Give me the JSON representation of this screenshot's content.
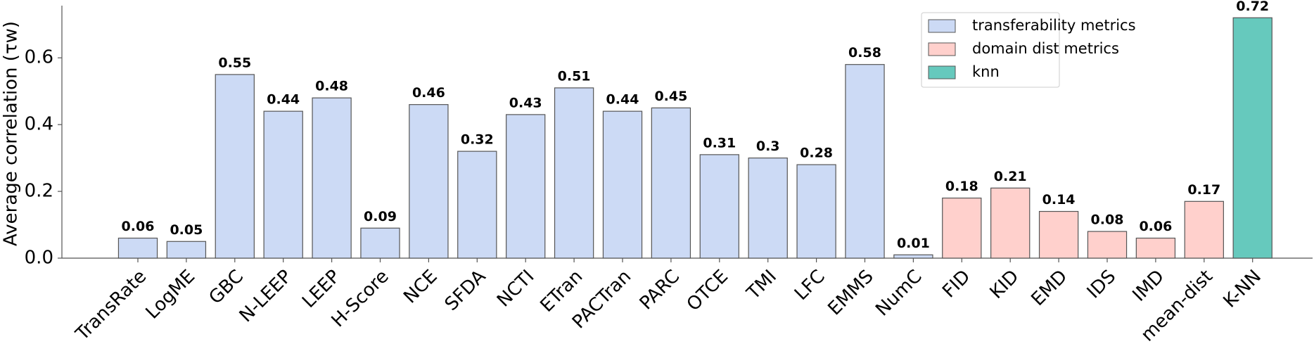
{
  "chart_data": {
    "type": "bar",
    "y_label": "Average correlation (τw)",
    "categories": [
      "TransRate",
      "LogME",
      "GBC",
      "N-LEEP",
      "LEEP",
      "H-Score",
      "NCE",
      "SFDA",
      "NCTI",
      "ETran",
      "PACTran",
      "PARC",
      "OTCE",
      "TMI",
      "LFC",
      "EMMS",
      "NumC",
      "FID",
      "KID",
      "EMD",
      "IDS",
      "IMD",
      "mean-dist",
      "K-NN"
    ],
    "series": [
      {
        "name": "transferability metrics",
        "color": "#ccdaf5",
        "values": [
          0.06,
          0.05,
          0.55,
          0.44,
          0.48,
          0.09,
          0.46,
          0.32,
          0.43,
          0.51,
          0.44,
          0.45,
          0.31,
          0.3,
          0.28,
          0.58,
          0.01,
          null,
          null,
          null,
          null,
          null,
          null,
          null
        ]
      },
      {
        "name": "domain dist metrics",
        "color": "#ffd0cc",
        "values": [
          null,
          null,
          null,
          null,
          null,
          null,
          null,
          null,
          null,
          null,
          null,
          null,
          null,
          null,
          null,
          null,
          null,
          0.18,
          0.21,
          0.14,
          0.08,
          0.06,
          0.17,
          null
        ]
      },
      {
        "name": "knn",
        "color": "#66c9bd",
        "values": [
          null,
          null,
          null,
          null,
          null,
          null,
          null,
          null,
          null,
          null,
          null,
          null,
          null,
          null,
          null,
          null,
          null,
          null,
          null,
          null,
          null,
          null,
          null,
          0.72
        ]
      }
    ],
    "ylim": [
      0,
      0.75
    ],
    "yticks": [
      {
        "value": 0,
        "label": "0.0"
      },
      0.2,
      0.4,
      0.6
    ],
    "legend": "upper right"
  }
}
